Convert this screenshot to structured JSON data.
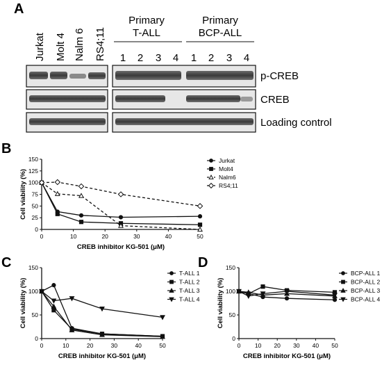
{
  "panel_a": {
    "label": "A",
    "cell_lines": [
      "Jurkat",
      "Molt 4",
      "Nalm 6",
      "RS4;11"
    ],
    "group_1": {
      "line1": "Primary",
      "line2": "T-ALL",
      "lanes": [
        "1",
        "2",
        "3",
        "4"
      ]
    },
    "group_2": {
      "line1": "Primary",
      "line2": "BCP-ALL",
      "lanes": [
        "1",
        "2",
        "3",
        "4"
      ]
    },
    "blot_rows": [
      "p-CREB",
      "CREB",
      "Loading control"
    ]
  },
  "chart_data": [
    {
      "panel": "B",
      "type": "line",
      "title": "",
      "xlabel": "CREB inhibitor KG-501 (μM)",
      "ylabel": "Cell viability (%)",
      "xlim": [
        0,
        50
      ],
      "ylim": [
        0,
        150
      ],
      "xticks": [
        0,
        10,
        20,
        30,
        40,
        50
      ],
      "yticks": [
        0,
        25,
        50,
        75,
        100,
        125,
        150
      ],
      "legend_position": "right",
      "series": [
        {
          "name": "Jurkat",
          "marker": "circle-filled",
          "dashed": false,
          "x": [
            0,
            5,
            12.5,
            25,
            50
          ],
          "y": [
            100,
            38,
            30,
            26,
            28
          ]
        },
        {
          "name": "Molt4",
          "marker": "square-filled",
          "dashed": false,
          "x": [
            0,
            5,
            12.5,
            25,
            50
          ],
          "y": [
            100,
            33,
            16,
            13,
            10
          ]
        },
        {
          "name": "Nalm6",
          "marker": "triangle-open",
          "dashed": true,
          "x": [
            0,
            5,
            12.5,
            25,
            50
          ],
          "y": [
            100,
            76,
            72,
            8,
            0
          ]
        },
        {
          "name": "RS4;11",
          "marker": "diamond-open",
          "dashed": true,
          "x": [
            0,
            5,
            12.5,
            25,
            50
          ],
          "y": [
            100,
            101,
            92,
            75,
            50
          ]
        }
      ]
    },
    {
      "panel": "C",
      "type": "line",
      "title": "",
      "xlabel": "CREB inhibitor KG-501 (μM)",
      "ylabel": "Cell viability (%)",
      "xlim": [
        0,
        50
      ],
      "ylim": [
        0,
        150
      ],
      "xticks": [
        0,
        10,
        20,
        30,
        40,
        50
      ],
      "yticks": [
        0,
        50,
        100,
        150
      ],
      "legend_position": "right",
      "series": [
        {
          "name": "T-ALL 1",
          "marker": "circle-filled",
          "dashed": false,
          "x": [
            0,
            5,
            12.5,
            25,
            50
          ],
          "y": [
            100,
            113,
            22,
            10,
            5
          ]
        },
        {
          "name": "T-ALL 2",
          "marker": "square-filled",
          "dashed": false,
          "x": [
            0,
            5,
            12.5,
            25,
            50
          ],
          "y": [
            100,
            60,
            20,
            10,
            5
          ]
        },
        {
          "name": "T-ALL 3",
          "marker": "triangle-filled",
          "dashed": false,
          "x": [
            0,
            5,
            12.5,
            25,
            50
          ],
          "y": [
            100,
            68,
            18,
            8,
            4
          ]
        },
        {
          "name": "T-ALL 4",
          "marker": "tri-down-filled",
          "dashed": false,
          "x": [
            0,
            5,
            12.5,
            25,
            50
          ],
          "y": [
            100,
            80,
            85,
            63,
            45
          ]
        }
      ]
    },
    {
      "panel": "D",
      "type": "line",
      "title": "",
      "xlabel": "CREB inhibitor KG-501 (μM)",
      "ylabel": "Cell viability (%)",
      "xlim": [
        0,
        50
      ],
      "ylim": [
        0,
        150
      ],
      "xticks": [
        0,
        10,
        20,
        30,
        40,
        50
      ],
      "yticks": [
        0,
        50,
        100,
        150
      ],
      "legend_position": "right",
      "series": [
        {
          "name": "BCP-ALL 1",
          "marker": "circle-filled",
          "dashed": false,
          "x": [
            0,
            5,
            12.5,
            25,
            50
          ],
          "y": [
            100,
            95,
            88,
            85,
            82
          ]
        },
        {
          "name": "BCP-ALL 2",
          "marker": "square-filled",
          "dashed": false,
          "x": [
            0,
            5,
            12.5,
            25,
            50
          ],
          "y": [
            100,
            95,
            110,
            102,
            98
          ]
        },
        {
          "name": "BCP-ALL 3",
          "marker": "triangle-filled",
          "dashed": false,
          "x": [
            0,
            5,
            12.5,
            25,
            50
          ],
          "y": [
            100,
            98,
            92,
            95,
            90
          ]
        },
        {
          "name": "BCP-ALL 4",
          "marker": "tri-down-filled",
          "dashed": false,
          "x": [
            0,
            5,
            12.5,
            25,
            50
          ],
          "y": [
            100,
            90,
            95,
            100,
            92
          ]
        }
      ]
    }
  ]
}
